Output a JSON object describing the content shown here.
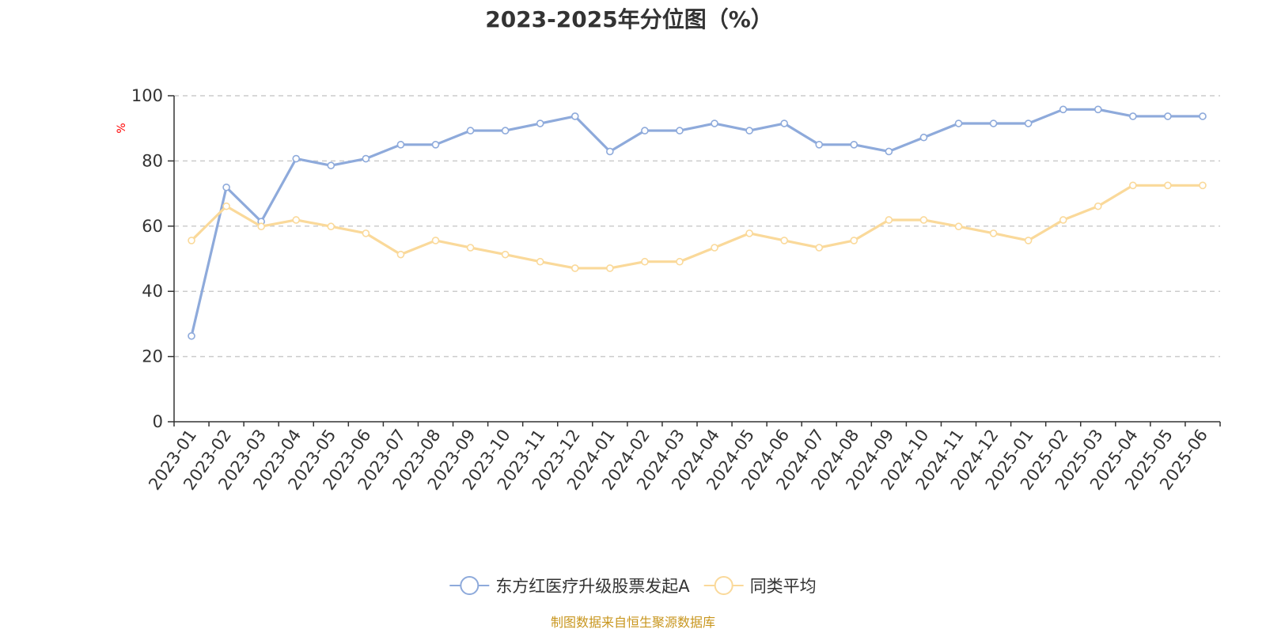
{
  "chart_data": {
    "type": "line",
    "title": "2023-2025年分位图（%）",
    "ylabel": "%",
    "xlabel": "",
    "ylim": [
      0,
      100
    ],
    "yticks": [
      0,
      20,
      40,
      60,
      80,
      100
    ],
    "grid": true,
    "legend_position": "bottom",
    "categories": [
      "2023-01",
      "2023-02",
      "2023-03",
      "2023-04",
      "2023-05",
      "2023-06",
      "2023-07",
      "2023-08",
      "2023-09",
      "2023-10",
      "2023-11",
      "2023-12",
      "2024-01",
      "2024-02",
      "2024-03",
      "2024-04",
      "2024-05",
      "2024-06",
      "2024-07",
      "2024-08",
      "2024-09",
      "2024-10",
      "2024-11",
      "2024-12",
      "2025-01",
      "2025-02",
      "2025-03",
      "2025-04",
      "2025-05",
      "2025-06"
    ],
    "series": [
      {
        "name": "东方红医疗升级股票发起A",
        "color": "#8eaadb",
        "values": [
          26.3,
          71.9,
          61.4,
          80.7,
          78.6,
          80.7,
          85.0,
          85.0,
          89.3,
          89.3,
          91.5,
          93.7,
          82.9,
          89.3,
          89.3,
          91.5,
          89.3,
          91.5,
          85.0,
          85.0,
          82.9,
          87.2,
          91.5,
          91.5,
          91.5,
          95.8,
          95.8,
          93.7,
          93.7,
          93.7
        ]
      },
      {
        "name": "同类平均",
        "color": "#fad99a",
        "values": [
          55.6,
          66.1,
          59.9,
          61.9,
          59.9,
          57.8,
          51.3,
          55.6,
          53.4,
          51.3,
          49.1,
          47.1,
          47.1,
          49.1,
          49.1,
          53.4,
          57.8,
          55.6,
          53.4,
          55.6,
          61.9,
          61.9,
          59.9,
          57.8,
          55.6,
          61.9,
          66.1,
          72.5,
          72.5,
          72.5
        ]
      }
    ]
  },
  "source_text": "制图数据来自恒生聚源数据库",
  "colors": {
    "axis": "#333333",
    "grid": "#cccccc",
    "unit_label": "#ff0000",
    "source_text": "#c8961e"
  }
}
